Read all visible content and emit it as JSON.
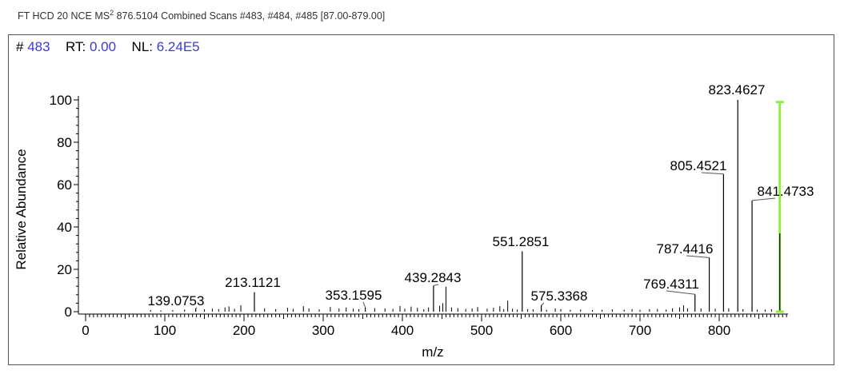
{
  "header": {
    "prefix": "FT HCD 20 NCE MS",
    "superscript": "2",
    "rest": " 876.5104 Combined Scans #483, #484, #485 [87.00-879.00]"
  },
  "info": {
    "scan_label": "#",
    "scan_value": "483",
    "rt_label": "RT:",
    "rt_value": "0.00",
    "nl_label": "NL:",
    "nl_value": "6.24E5"
  },
  "chart_data": {
    "type": "bar",
    "xlabel": "m/z",
    "ylabel": "Relative Abundance",
    "xlim": [
      -20,
      890
    ],
    "ylim": [
      0,
      100
    ],
    "x_ticks": [
      0,
      100,
      200,
      300,
      400,
      500,
      600,
      700,
      800
    ],
    "y_ticks": [
      0,
      20,
      40,
      60,
      80,
      100
    ],
    "grid": false,
    "colors": {
      "peaks": "#000000",
      "precursor_marker": "#90ee40",
      "value_text": "#3b3bd8"
    },
    "labeled_peaks": [
      {
        "mz": 139.0753,
        "intensity": 1.5,
        "label": "139.0753"
      },
      {
        "mz": 213.1121,
        "intensity": 9.2,
        "label": "213.1121"
      },
      {
        "mz": 353.1595,
        "intensity": 2.0,
        "label": "353.1595"
      },
      {
        "mz": 439.2843,
        "intensity": 12.3,
        "label": "439.2843"
      },
      {
        "mz": 551.2851,
        "intensity": 28.5,
        "label": "551.2851"
      },
      {
        "mz": 575.3368,
        "intensity": 3.0,
        "label": "575.3368"
      },
      {
        "mz": 769.4311,
        "intensity": 8.2,
        "label": "769.4311"
      },
      {
        "mz": 787.4416,
        "intensity": 25.5,
        "label": "787.4416"
      },
      {
        "mz": 805.4521,
        "intensity": 65.0,
        "label": "805.4521"
      },
      {
        "mz": 823.4627,
        "intensity": 100.0,
        "label": "823.4627"
      },
      {
        "mz": 841.4733,
        "intensity": 52.5,
        "label": "841.4733"
      }
    ],
    "other_peaks": [
      [
        82,
        0.8
      ],
      [
        95,
        0.6
      ],
      [
        110,
        0.7
      ],
      [
        125,
        1.0
      ],
      [
        150,
        1.1
      ],
      [
        160,
        1.4
      ],
      [
        168,
        1.2
      ],
      [
        176,
        2.0
      ],
      [
        181,
        2.5
      ],
      [
        188,
        1.3
      ],
      [
        196,
        3.0
      ],
      [
        226,
        1.6
      ],
      [
        240,
        1.2
      ],
      [
        255,
        1.8
      ],
      [
        262,
        1.3
      ],
      [
        275,
        2.6
      ],
      [
        282,
        1.5
      ],
      [
        295,
        1.1
      ],
      [
        309,
        2.2
      ],
      [
        320,
        1.5
      ],
      [
        329,
        2.0
      ],
      [
        338,
        1.4
      ],
      [
        345,
        1.2
      ],
      [
        365,
        1.7
      ],
      [
        378,
        1.5
      ],
      [
        388,
        1.3
      ],
      [
        397,
        2.7
      ],
      [
        403,
        1.4
      ],
      [
        411,
        2.4
      ],
      [
        419,
        1.8
      ],
      [
        427,
        1.2
      ],
      [
        433,
        2.0
      ],
      [
        447,
        2.8
      ],
      [
        451,
        4.0
      ],
      [
        455,
        11.8
      ],
      [
        462,
        2.0
      ],
      [
        470,
        1.7
      ],
      [
        480,
        1.3
      ],
      [
        488,
        1.5
      ],
      [
        495,
        2.2
      ],
      [
        507,
        1.4
      ],
      [
        515,
        1.8
      ],
      [
        523,
        2.6
      ],
      [
        528,
        1.2
      ],
      [
        533,
        5.2
      ],
      [
        539,
        1.4
      ],
      [
        545,
        1.0
      ],
      [
        558,
        1.2
      ],
      [
        565,
        1.1
      ],
      [
        582,
        0.9
      ],
      [
        593,
        1.5
      ],
      [
        600,
        1.2
      ],
      [
        612,
        0.9
      ],
      [
        625,
        1.0
      ],
      [
        640,
        0.8
      ],
      [
        652,
        0.9
      ],
      [
        665,
        1.1
      ],
      [
        680,
        0.9
      ],
      [
        690,
        1.2
      ],
      [
        700,
        0.9
      ],
      [
        712,
        1.1
      ],
      [
        722,
        1.3
      ],
      [
        733,
        1.0
      ],
      [
        741,
        1.6
      ],
      [
        750,
        2.0
      ],
      [
        755,
        3.0
      ],
      [
        760,
        1.6
      ],
      [
        777,
        1.5
      ],
      [
        795,
        1.4
      ],
      [
        812,
        1.6
      ],
      [
        830,
        1.2
      ],
      [
        848,
        1.0
      ],
      [
        858,
        1.0
      ],
      [
        866,
        1.1
      ]
    ],
    "precursor_marker": {
      "mz": 876.5104,
      "top": 99,
      "solid_from": 37
    }
  }
}
